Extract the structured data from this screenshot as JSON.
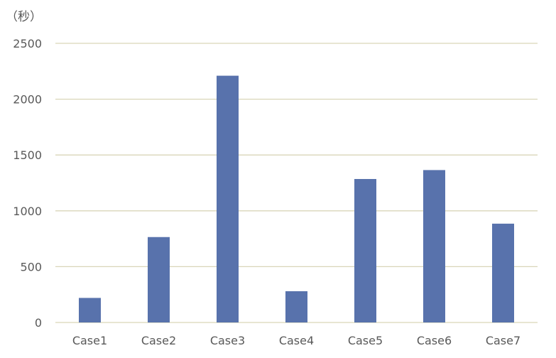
{
  "chart_data": {
    "type": "bar",
    "unit_label": "（秒）",
    "categories": [
      "Case1",
      "Case2",
      "Case3",
      "Case4",
      "Case5",
      "Case6",
      "Case7"
    ],
    "values": [
      220,
      765,
      2210,
      280,
      1285,
      1365,
      885
    ],
    "ylim": [
      0,
      2500
    ],
    "yticks": [
      0,
      500,
      1000,
      1500,
      2000,
      2500
    ],
    "grid": true,
    "bar_color": "#5872ac",
    "grid_color": "#d9d6b8",
    "text_color": "#595959",
    "legend": "none"
  }
}
